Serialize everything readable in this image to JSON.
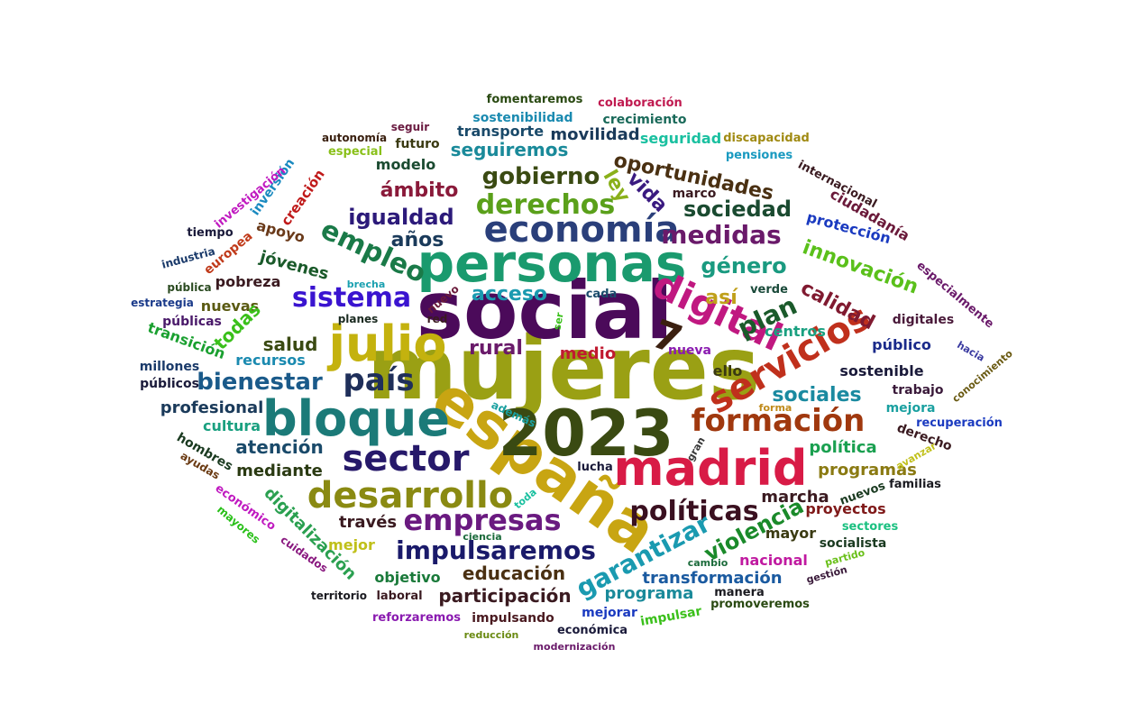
{
  "words": [
    {
      "text": "mujeres",
      "color": "#9aa014"
    },
    {
      "text": "social",
      "color": "#4b0a5a"
    },
    {
      "text": "personas",
      "color": "#1a9a6e"
    },
    {
      "text": "españa",
      "color": "#c8a512"
    },
    {
      "text": "2023",
      "color": "#3a4a12"
    },
    {
      "text": "madrid",
      "color": "#d81b46"
    },
    {
      "text": "bloque",
      "color": "#1b7a78"
    },
    {
      "text": "julio",
      "color": "#c4b20e"
    },
    {
      "text": "digital",
      "color": "#c01880"
    },
    {
      "text": "economía",
      "color": "#2a3f7a"
    },
    {
      "text": "7",
      "color": "#3b2010"
    },
    {
      "text": "servicios",
      "color": "#c0301c"
    },
    {
      "text": "desarrollo",
      "color": "#8a8a12"
    },
    {
      "text": "sector",
      "color": "#26196a"
    },
    {
      "text": "formación",
      "color": "#a0380e"
    },
    {
      "text": "país",
      "color": "#1f2f5a"
    },
    {
      "text": "empresas",
      "color": "#6a1a80"
    },
    {
      "text": "derechos",
      "color": "#5aa01a"
    },
    {
      "text": "gobierno",
      "color": "#3a4a12"
    },
    {
      "text": "medidas",
      "color": "#6a1a6a"
    },
    {
      "text": "políticas",
      "color": "#3a1020"
    },
    {
      "text": "empleo",
      "color": "#1a7a48"
    },
    {
      "text": "sistema",
      "color": "#3a14d0"
    },
    {
      "text": "bienestar",
      "color": "#1a5a8a"
    },
    {
      "text": "impulsaremos",
      "color": "#1a1a6a"
    },
    {
      "text": "igualdad",
      "color": "#2c1a7a"
    },
    {
      "text": "oportunidades",
      "color": "#4a3012"
    },
    {
      "text": "sociedad",
      "color": "#1a4a30"
    },
    {
      "text": "género",
      "color": "#1a9a80"
    },
    {
      "text": "plan",
      "color": "#1a5a2a"
    },
    {
      "text": "garantizar",
      "color": "#1a9ab0"
    },
    {
      "text": "violencia",
      "color": "#1a8a2a"
    },
    {
      "text": "calidad",
      "color": "#801a30"
    },
    {
      "text": "innovación",
      "color": "#5ac01a"
    },
    {
      "text": "sociales",
      "color": "#1a8aa0"
    },
    {
      "text": "ámbito",
      "color": "#8a1a3a"
    },
    {
      "text": "años",
      "color": "#1a3a5a"
    },
    {
      "text": "ley",
      "color": "#8ab01a"
    },
    {
      "text": "vida",
      "color": "#3a1a80"
    },
    {
      "text": "así",
      "color": "#c0a01a"
    },
    {
      "text": "acceso",
      "color": "#1a9ab0"
    },
    {
      "text": "rural",
      "color": "#6a1a6a"
    },
    {
      "text": "salud",
      "color": "#3a4a12"
    },
    {
      "text": "jóvenes",
      "color": "#1a5a2a"
    },
    {
      "text": "apoyo",
      "color": "#6a3a1a"
    },
    {
      "text": "pobreza",
      "color": "#3a1a20"
    },
    {
      "text": "nuevas",
      "color": "#5a5a12"
    },
    {
      "text": "todas",
      "color": "#3ac01a"
    },
    {
      "text": "públicas",
      "color": "#4a1a6a"
    },
    {
      "text": "recursos",
      "color": "#1a8ab0"
    },
    {
      "text": "profesional",
      "color": "#1a3a5a"
    },
    {
      "text": "atención",
      "color": "#1a4a6a"
    },
    {
      "text": "mediante",
      "color": "#2a3a12"
    },
    {
      "text": "cultura",
      "color": "#1aa080"
    },
    {
      "text": "hombres",
      "color": "#1a3a20"
    },
    {
      "text": "digitalización",
      "color": "#2aa050"
    },
    {
      "text": "través",
      "color": "#3a1a20"
    },
    {
      "text": "educación",
      "color": "#4a3012"
    },
    {
      "text": "participación",
      "color": "#3a1a20"
    },
    {
      "text": "objetivo",
      "color": "#1a7a3a"
    },
    {
      "text": "mejor",
      "color": "#c0c01a"
    },
    {
      "text": "programa",
      "color": "#1a8a9a"
    },
    {
      "text": "transformación",
      "color": "#1a5aa0"
    },
    {
      "text": "marcha",
      "color": "#3a1a20"
    },
    {
      "text": "proyectos",
      "color": "#801a1a"
    },
    {
      "text": "mayor",
      "color": "#3a3a12"
    },
    {
      "text": "nacional",
      "color": "#c01aa0"
    },
    {
      "text": "socialista",
      "color": "#1a3a20"
    },
    {
      "text": "programas",
      "color": "#8a7a12"
    },
    {
      "text": "política",
      "color": "#1aa050"
    },
    {
      "text": "sostenible",
      "color": "#1a1a3a"
    },
    {
      "text": "público",
      "color": "#1a2a8a"
    },
    {
      "text": "trabajo",
      "color": "#3a1a3a"
    },
    {
      "text": "mejora",
      "color": "#1aa0a0"
    },
    {
      "text": "centros",
      "color": "#1aa080"
    },
    {
      "text": "digitales",
      "color": "#4a1a3a"
    },
    {
      "text": "medio",
      "color": "#c01a30"
    },
    {
      "text": "ello",
      "color": "#3a3a12"
    },
    {
      "text": "nueva",
      "color": "#8a1ab0"
    },
    {
      "text": "protección",
      "color": "#1a3ac0"
    },
    {
      "text": "ciudadanía",
      "color": "#6a1a3a"
    },
    {
      "text": "movilidad",
      "color": "#1a3a5a"
    },
    {
      "text": "seguiremos",
      "color": "#1a8a9a"
    },
    {
      "text": "modelo",
      "color": "#1a4a30"
    },
    {
      "text": "futuro",
      "color": "#3a3a12"
    },
    {
      "text": "transporte",
      "color": "#1a4a6a"
    },
    {
      "text": "seguridad",
      "color": "#1ac0a0"
    },
    {
      "text": "crecimiento",
      "color": "#1a6a5a"
    },
    {
      "text": "sostenibilidad",
      "color": "#1a8ab0"
    },
    {
      "text": "fomentaremos",
      "color": "#2a4a12"
    },
    {
      "text": "colaboración",
      "color": "#c01a50"
    },
    {
      "text": "discapacidad",
      "color": "#a08a12"
    },
    {
      "text": "pensiones",
      "color": "#1a9ac0"
    },
    {
      "text": "especial",
      "color": "#8ac01a"
    },
    {
      "text": "autonomía",
      "color": "#3a2010"
    },
    {
      "text": "seguir",
      "color": "#6a1a40"
    },
    {
      "text": "internacional",
      "color": "#3a1a20"
    },
    {
      "text": "marco",
      "color": "#3a1a20"
    },
    {
      "text": "especialmente",
      "color": "#6a1a6a"
    },
    {
      "text": "inversión",
      "color": "#1a8ac0"
    },
    {
      "text": "creación",
      "color": "#c01a1a"
    },
    {
      "text": "investigación",
      "color": "#c01ac0"
    },
    {
      "text": "tiempo",
      "color": "#1a1a3a"
    },
    {
      "text": "europea",
      "color": "#c03a1a"
    },
    {
      "text": "industria",
      "color": "#1a3a6a"
    },
    {
      "text": "pública",
      "color": "#2a4a20"
    },
    {
      "text": "estrategia",
      "color": "#1a3a8a"
    },
    {
      "text": "transición",
      "color": "#1aa030"
    },
    {
      "text": "millones",
      "color": "#1a3a6a"
    },
    {
      "text": "públicos",
      "color": "#1a1a3a"
    },
    {
      "text": "nuevo",
      "color": "#6a1a3a"
    },
    {
      "text": "brecha",
      "color": "#1aa0b0"
    },
    {
      "text": "planes",
      "color": "#1a2a20"
    },
    {
      "text": "red",
      "color": "#3a1a20"
    },
    {
      "text": "ser",
      "color": "#3ac01a"
    },
    {
      "text": "cada",
      "color": "#1a4a6a"
    },
    {
      "text": "verde",
      "color": "#1a4a3a"
    },
    {
      "text": "hacia",
      "color": "#3a3aa0"
    },
    {
      "text": "conocimiento",
      "color": "#6a5a12"
    },
    {
      "text": "recuperación",
      "color": "#1a3ac0"
    },
    {
      "text": "derecho",
      "color": "#3a1a20"
    },
    {
      "text": "avanzar",
      "color": "#c0c01a"
    },
    {
      "text": "forma",
      "color": "#c08a1a"
    },
    {
      "text": "además",
      "color": "#1aa0a0"
    },
    {
      "text": "lucha",
      "color": "#1a1a3a"
    },
    {
      "text": "gran",
      "color": "#3a3a3a"
    },
    {
      "text": "toda",
      "color": "#1ac0a0"
    },
    {
      "text": "familias",
      "color": "#1a1a20"
    },
    {
      "text": "nuevos",
      "color": "#1a3a20"
    },
    {
      "text": "sectores",
      "color": "#1ac080"
    },
    {
      "text": "partido",
      "color": "#6ac01a"
    },
    {
      "text": "cambio",
      "color": "#1a6a3a"
    },
    {
      "text": "gestión",
      "color": "#3a1a3a"
    },
    {
      "text": "manera",
      "color": "#1a1a20"
    },
    {
      "text": "promoveremos",
      "color": "#2a4a12"
    },
    {
      "text": "impulsar",
      "color": "#3ac01a"
    },
    {
      "text": "mejorar",
      "color": "#1a3ac0"
    },
    {
      "text": "impulsando",
      "color": "#4a1a20"
    },
    {
      "text": "económica",
      "color": "#1a1a3a"
    },
    {
      "text": "reforzaremos",
      "color": "#8a1ab0"
    },
    {
      "text": "reducción",
      "color": "#6a8a12"
    },
    {
      "text": "modernización",
      "color": "#6a1a6a"
    },
    {
      "text": "laboral",
      "color": "#3a1a20"
    },
    {
      "text": "territorio",
      "color": "#1a1a20"
    },
    {
      "text": "cuidados",
      "color": "#8a1a80"
    },
    {
      "text": "ciencia",
      "color": "#1a6a3a"
    },
    {
      "text": "mayores",
      "color": "#2ac01a"
    },
    {
      "text": "económico",
      "color": "#c01ac0"
    },
    {
      "text": "ayudas",
      "color": "#6a3a12"
    }
  ]
}
